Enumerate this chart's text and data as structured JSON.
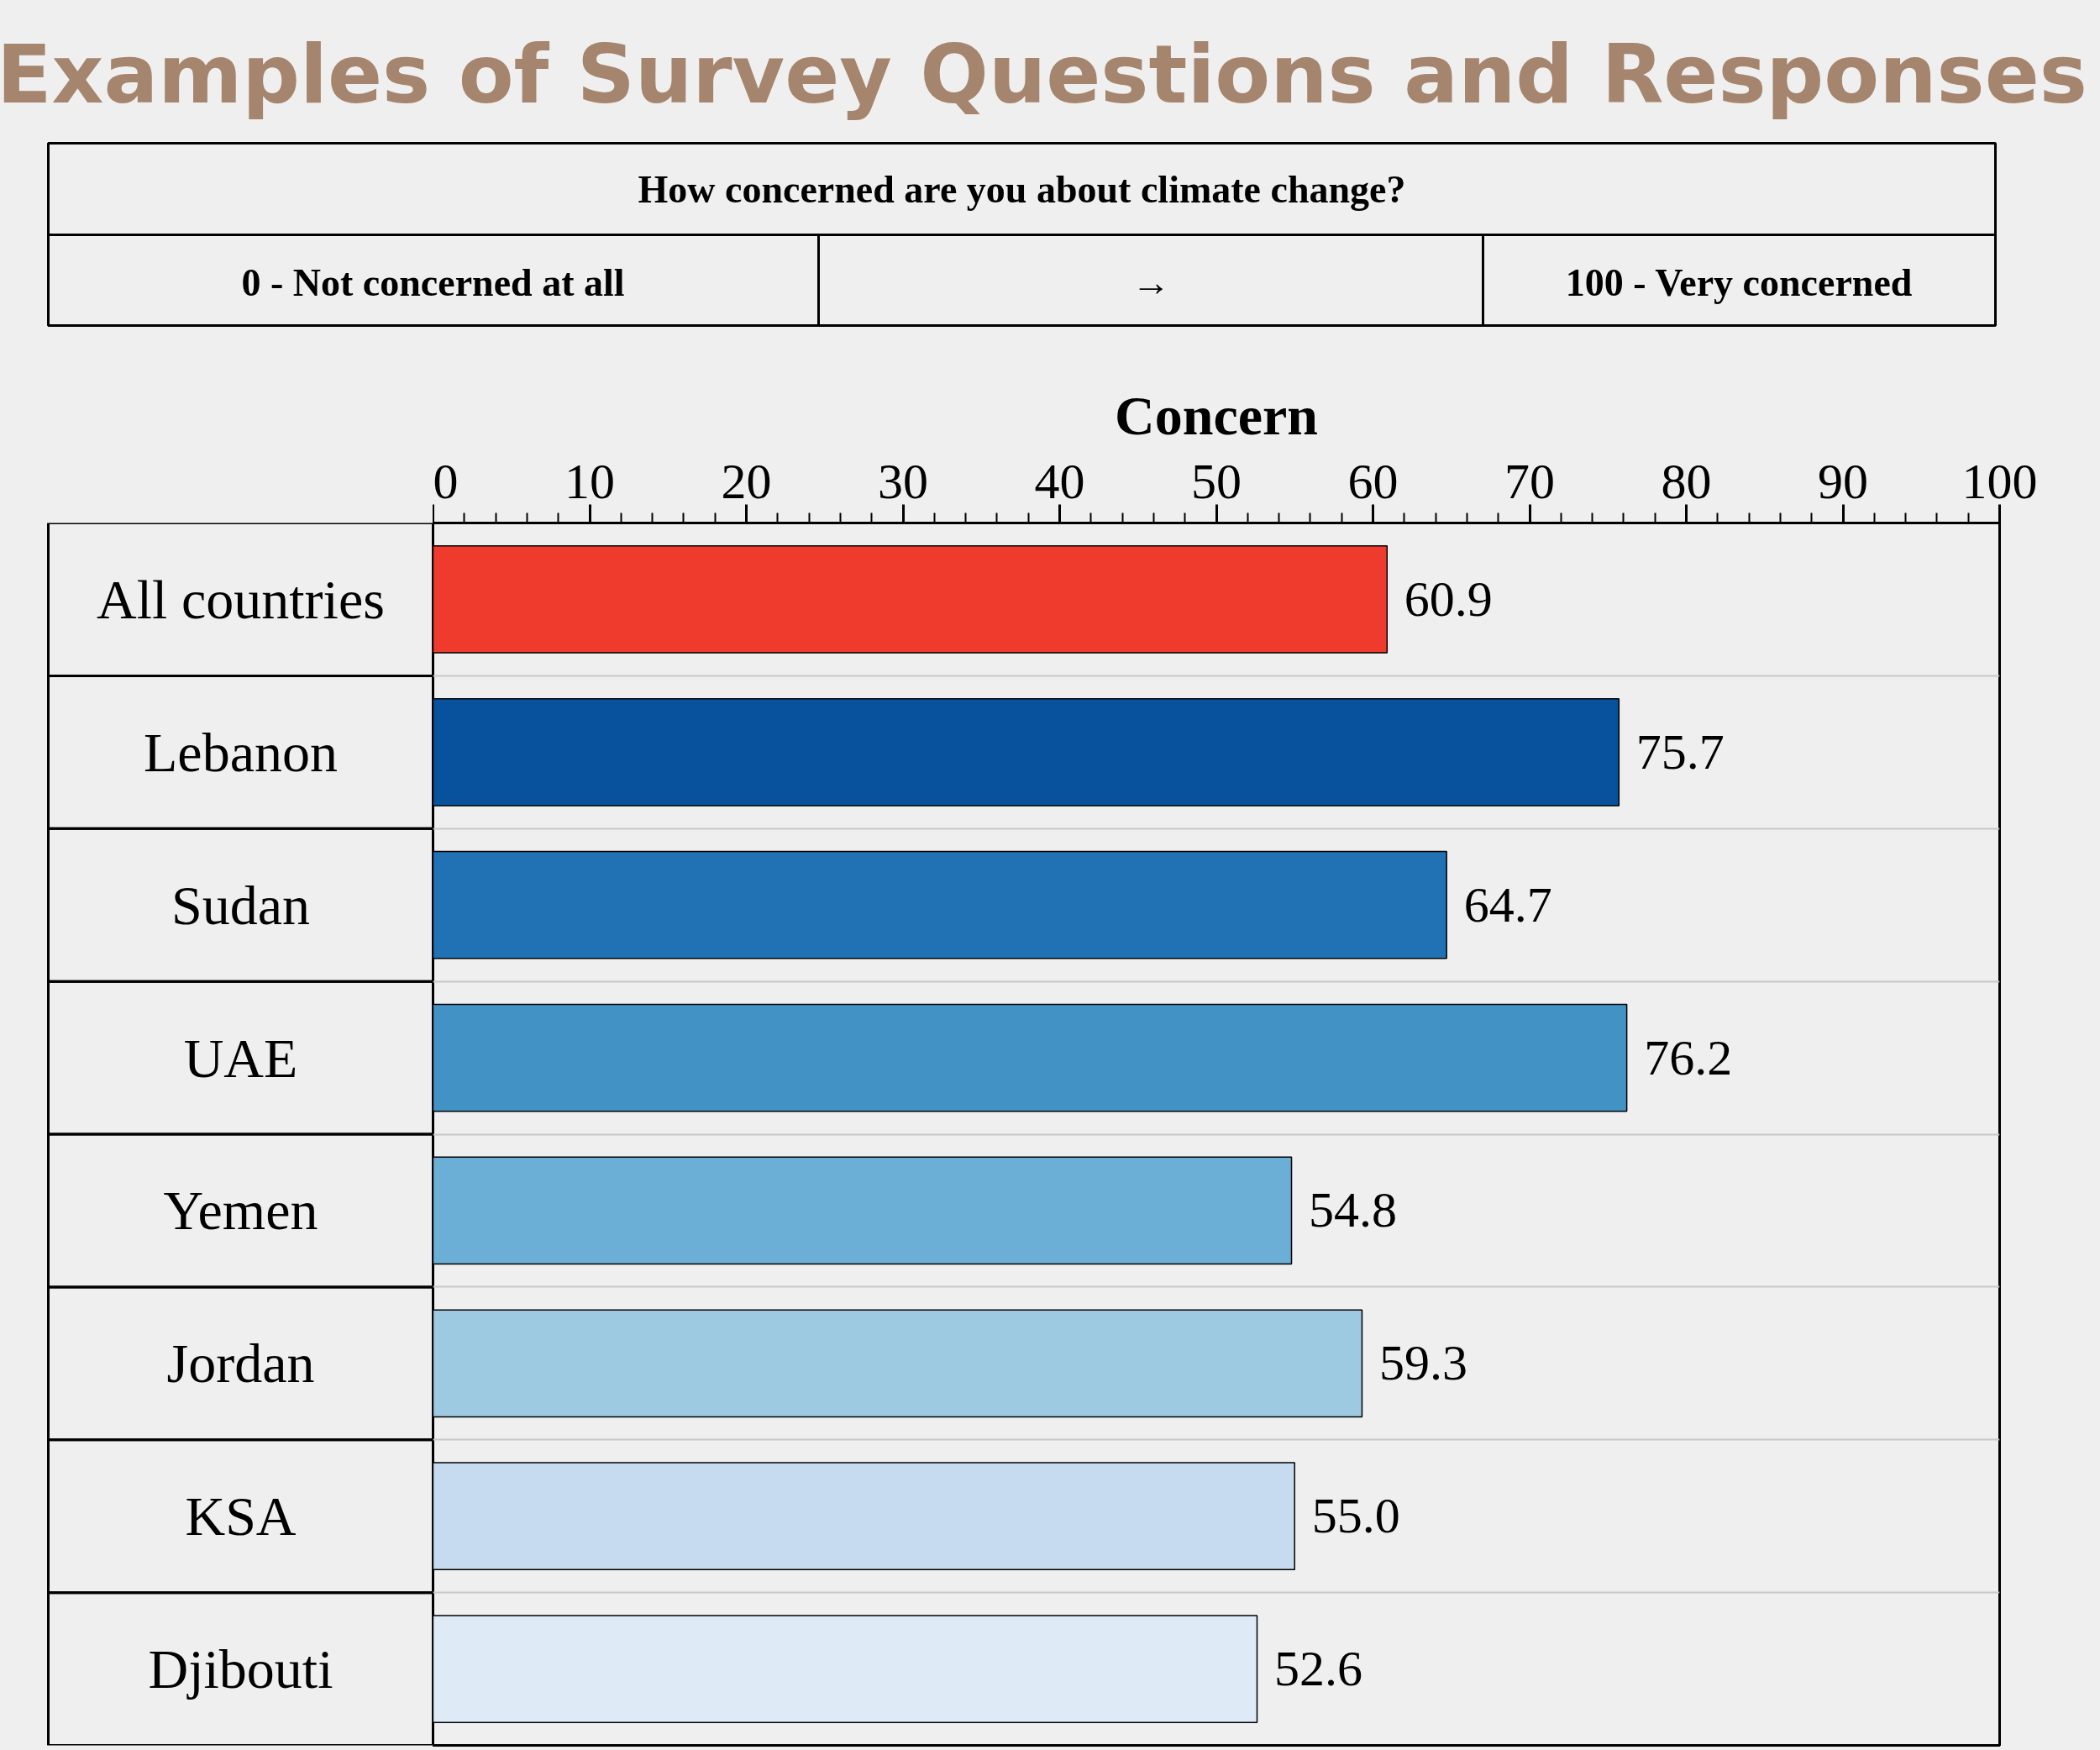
{
  "chart_data": {
    "type": "bar",
    "orientation": "horizontal",
    "title": "Examples of Survey Questions and Responses",
    "xlabel": "Concern",
    "categories": [
      "All countries",
      "Lebanon",
      "Sudan",
      "UAE",
      "Yemen",
      "Jordan",
      "KSA",
      "Djibouti"
    ],
    "values": [
      60.9,
      75.7,
      64.7,
      76.2,
      54.8,
      59.3,
      55.0,
      52.6
    ],
    "colors": [
      "#ee3b2d",
      "#08519c",
      "#2171b5",
      "#4292c6",
      "#6baed6",
      "#9ecae1",
      "#c6dbef",
      "#deebf7"
    ],
    "xlim": [
      0,
      100
    ],
    "xticks": [
      0,
      10,
      20,
      30,
      40,
      50,
      60,
      70,
      80,
      90,
      100
    ],
    "value_labels": [
      "60.9",
      "75.7",
      "64.7",
      "76.2",
      "54.8",
      "59.3",
      "55.0",
      "52.6"
    ],
    "grid": "y",
    "annotations": [
      "How concerned are you about climate change?",
      "0 - Not concerned at all",
      "→",
      "100 - Very concerned"
    ]
  }
}
